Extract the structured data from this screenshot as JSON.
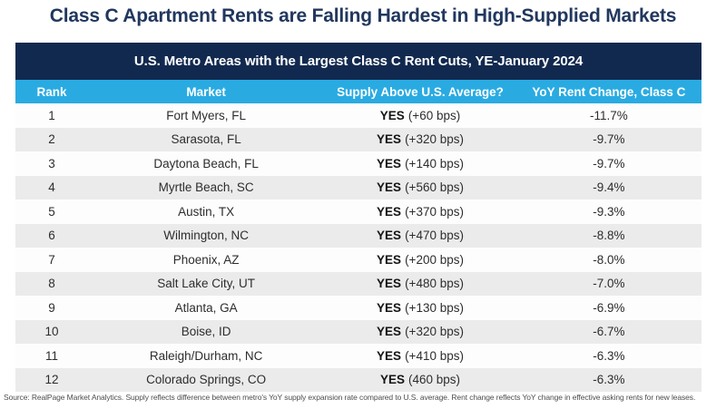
{
  "page_title": "Class C Apartment Rents are Falling Hardest in High-Supplied Markets",
  "chart_data": {
    "type": "table",
    "title": "U.S. Metro Areas with the Largest Class C Rent Cuts, YE-January 2024",
    "columns": {
      "rank": "Rank",
      "market": "Market",
      "supply": "Supply Above U.S. Average?",
      "change": "YoY Rent Change, Class C"
    },
    "rows": [
      {
        "rank": "1",
        "market": "Fort Myers, FL",
        "supply_yes": "YES",
        "supply_detail": "(+60 bps)",
        "change": "-11.7%"
      },
      {
        "rank": "2",
        "market": "Sarasota, FL",
        "supply_yes": "YES",
        "supply_detail": "(+320 bps)",
        "change": "-9.7%"
      },
      {
        "rank": "3",
        "market": "Daytona Beach, FL",
        "supply_yes": "YES",
        "supply_detail": "(+140 bps)",
        "change": "-9.7%"
      },
      {
        "rank": "4",
        "market": "Myrtle Beach, SC",
        "supply_yes": "YES",
        "supply_detail": "(+560 bps)",
        "change": "-9.4%"
      },
      {
        "rank": "5",
        "market": "Austin, TX",
        "supply_yes": "YES",
        "supply_detail": "(+370 bps)",
        "change": "-9.3%"
      },
      {
        "rank": "6",
        "market": "Wilmington, NC",
        "supply_yes": "YES",
        "supply_detail": "(+470 bps)",
        "change": "-8.8%"
      },
      {
        "rank": "7",
        "market": "Phoenix, AZ",
        "supply_yes": "YES",
        "supply_detail": "(+200 bps)",
        "change": "-8.0%"
      },
      {
        "rank": "8",
        "market": "Salt Lake City, UT",
        "supply_yes": "YES",
        "supply_detail": "(+480 bps)",
        "change": "-7.0%"
      },
      {
        "rank": "9",
        "market": "Atlanta, GA",
        "supply_yes": "YES",
        "supply_detail": "(+130 bps)",
        "change": "-6.9%"
      },
      {
        "rank": "10",
        "market": "Boise, ID",
        "supply_yes": "YES",
        "supply_detail": "(+320 bps)",
        "change": "-6.7%"
      },
      {
        "rank": "11",
        "market": "Raleigh/Durham, NC",
        "supply_yes": "YES",
        "supply_detail": "(+410 bps)",
        "change": "-6.3%"
      },
      {
        "rank": "12",
        "market": "Colorado Springs, CO",
        "supply_yes": "YES",
        "supply_detail": "(460 bps)",
        "change": "-6.3%"
      }
    ]
  },
  "footer": {
    "source_note": "Source: RealPage Market Analytics. Supply reflects difference between metro's YoY supply expansion rate compared to U.S. average. Rent change reflects YoY change in effective asking rents for new leases."
  },
  "colors": {
    "title_navy": "#21375e",
    "bar_navy": "#12294f",
    "header_blue": "#29abe2",
    "row_alt_gray": "#ebebeb"
  }
}
